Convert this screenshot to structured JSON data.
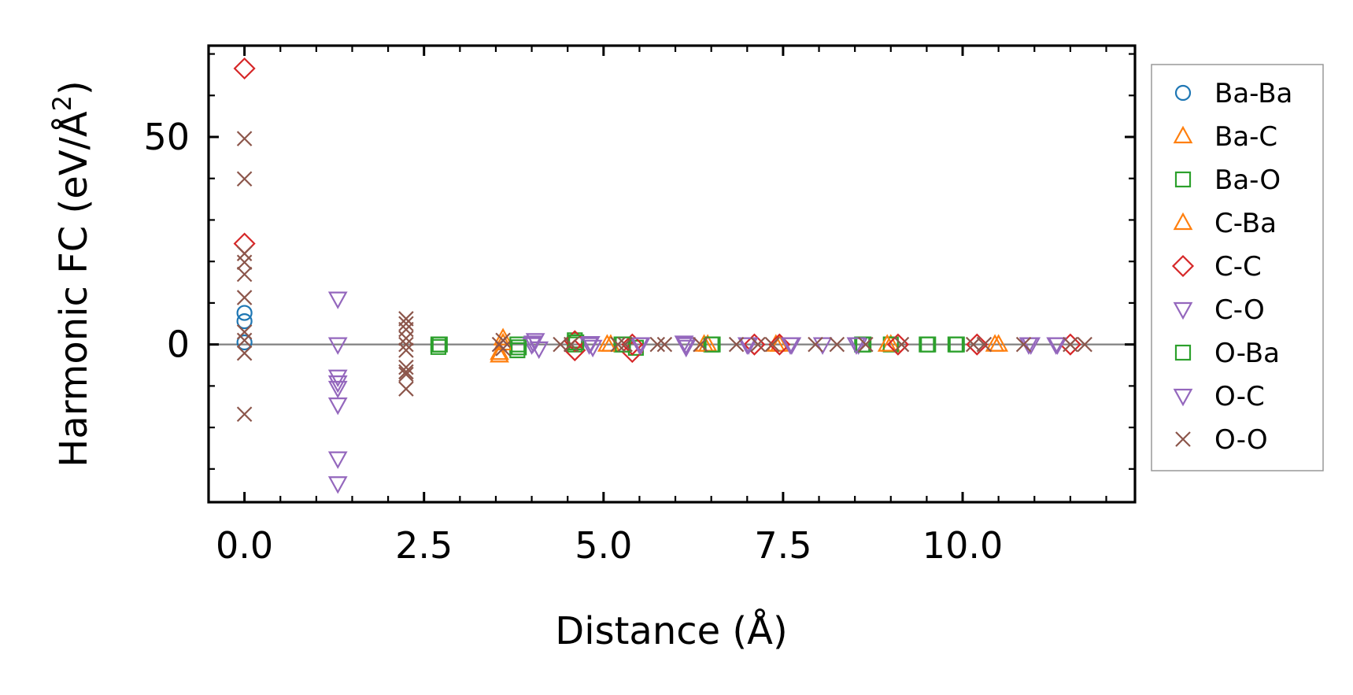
{
  "chart_data": {
    "type": "scatter",
    "title": "",
    "xlabel": "Distance (Å)",
    "ylabel_main": "Harmonic FC (eV/Å",
    "ylabel_sup": "2",
    "ylabel_close": ")",
    "xlim": [
      -0.5,
      12.4
    ],
    "ylim": [
      -38,
      72
    ],
    "xticks": [
      0.0,
      2.5,
      5.0,
      7.5,
      10.0
    ],
    "xtick_labels": [
      "0.0",
      "2.5",
      "5.0",
      "7.5",
      "10.0"
    ],
    "yticks": [
      0,
      50
    ],
    "ytick_labels": [
      "0",
      "50"
    ],
    "zero_line": 0,
    "legend_position": "outside-right",
    "series": [
      {
        "name": "Ba-Ba",
        "marker": "circle",
        "color": "#1f77b4",
        "points": [
          [
            0.0,
            7.6
          ],
          [
            0.0,
            5.6
          ],
          [
            0.0,
            0.5
          ]
        ]
      },
      {
        "name": "Ba-C",
        "marker": "triangle-up",
        "color": "#ff7f0e",
        "points": [
          [
            3.55,
            -2.0
          ],
          [
            3.6,
            1.5
          ],
          [
            5.1,
            0.0
          ],
          [
            6.45,
            0.0
          ],
          [
            7.4,
            0.0
          ],
          [
            9.0,
            0.0
          ],
          [
            10.5,
            0.0
          ]
        ]
      },
      {
        "name": "Ba-O",
        "marker": "square",
        "color": "#2ca02c",
        "points": [
          [
            2.7,
            0.0
          ],
          [
            2.7,
            -0.6
          ],
          [
            3.8,
            0.0
          ],
          [
            3.8,
            -1.4
          ],
          [
            4.6,
            0.0
          ],
          [
            4.6,
            1.0
          ],
          [
            5.25,
            0.0
          ],
          [
            5.45,
            -0.8
          ],
          [
            6.5,
            0.0
          ],
          [
            8.6,
            0.0
          ],
          [
            9.0,
            0.0
          ],
          [
            9.5,
            0.0
          ],
          [
            9.9,
            0.0
          ]
        ]
      },
      {
        "name": "C-Ba",
        "marker": "triangle-up",
        "color": "#ff7f0e",
        "points": [
          [
            3.55,
            -2.6
          ],
          [
            3.6,
            0.3
          ],
          [
            5.05,
            0.0
          ],
          [
            6.4,
            0.0
          ],
          [
            7.45,
            0.0
          ],
          [
            8.95,
            0.0
          ],
          [
            10.45,
            0.0
          ]
        ]
      },
      {
        "name": "C-C",
        "marker": "diamond",
        "color": "#d62728",
        "points": [
          [
            0.0,
            66.5
          ],
          [
            0.0,
            24.3
          ],
          [
            4.6,
            0.8
          ],
          [
            4.6,
            -1.4
          ],
          [
            5.4,
            0.0
          ],
          [
            5.4,
            -1.8
          ],
          [
            7.1,
            0.0
          ],
          [
            7.45,
            0.0
          ],
          [
            9.1,
            0.0
          ],
          [
            10.2,
            0.0
          ],
          [
            11.5,
            0.0
          ]
        ]
      },
      {
        "name": "C-O",
        "marker": "triangle-down",
        "color": "#9467bd",
        "points": [
          [
            1.3,
            11.0
          ],
          [
            1.3,
            0.0
          ],
          [
            1.3,
            -7.8
          ],
          [
            1.3,
            -9.2
          ],
          [
            1.3,
            -10.5
          ],
          [
            1.3,
            -14.5
          ],
          [
            1.3,
            -27.5
          ],
          [
            1.3,
            -33.5
          ],
          [
            4.0,
            0.0
          ],
          [
            4.05,
            1.0
          ],
          [
            4.1,
            -1.0
          ],
          [
            4.8,
            0.0
          ],
          [
            4.85,
            -0.6
          ],
          [
            5.5,
            0.0
          ],
          [
            6.15,
            0.0
          ],
          [
            6.15,
            -0.6
          ],
          [
            7.0,
            0.0
          ],
          [
            7.6,
            0.0
          ],
          [
            8.05,
            0.0
          ],
          [
            8.55,
            0.0
          ],
          [
            10.95,
            0.0
          ],
          [
            11.3,
            0.0
          ]
        ]
      },
      {
        "name": "O-Ba",
        "marker": "square",
        "color": "#2ca02c",
        "points": [
          [
            2.72,
            0.0
          ],
          [
            3.82,
            -0.7
          ],
          [
            4.62,
            0.5
          ],
          [
            5.27,
            0.0
          ],
          [
            6.52,
            0.0
          ],
          [
            8.62,
            0.0
          ],
          [
            9.52,
            0.0
          ],
          [
            9.92,
            0.0
          ]
        ]
      },
      {
        "name": "O-C",
        "marker": "triangle-down",
        "color": "#9467bd",
        "points": [
          [
            4.02,
            0.4
          ],
          [
            4.82,
            0.3
          ],
          [
            5.52,
            0.0
          ],
          [
            6.12,
            0.4
          ],
          [
            7.02,
            0.0
          ],
          [
            7.62,
            0.0
          ],
          [
            8.52,
            0.0
          ],
          [
            10.92,
            0.0
          ],
          [
            11.32,
            0.0
          ]
        ]
      },
      {
        "name": "O-O",
        "marker": "x",
        "color": "#8c564b",
        "points": [
          [
            0.0,
            49.6
          ],
          [
            0.0,
            39.9
          ],
          [
            0.0,
            21.9
          ],
          [
            0.0,
            19.8
          ],
          [
            0.0,
            16.9
          ],
          [
            0.0,
            11.3
          ],
          [
            0.0,
            3.0
          ],
          [
            0.0,
            1.0
          ],
          [
            0.0,
            -2.1
          ],
          [
            0.0,
            -16.8
          ],
          [
            2.25,
            6.2
          ],
          [
            2.25,
            5.0
          ],
          [
            2.25,
            3.6
          ],
          [
            2.25,
            1.5
          ],
          [
            2.25,
            0.0
          ],
          [
            2.25,
            -1.4
          ],
          [
            2.25,
            -5.5
          ],
          [
            2.25,
            -6.6
          ],
          [
            2.25,
            -7.2
          ],
          [
            2.25,
            -10.7
          ],
          [
            3.55,
            0.0
          ],
          [
            3.6,
            1.0
          ],
          [
            3.6,
            -1.0
          ],
          [
            4.4,
            0.0
          ],
          [
            4.55,
            0.0
          ],
          [
            5.2,
            0.0
          ],
          [
            5.3,
            0.0
          ],
          [
            5.75,
            0.0
          ],
          [
            5.85,
            0.0
          ],
          [
            6.35,
            0.0
          ],
          [
            6.85,
            0.0
          ],
          [
            7.15,
            0.0
          ],
          [
            7.35,
            0.0
          ],
          [
            7.95,
            0.0
          ],
          [
            8.25,
            0.0
          ],
          [
            8.65,
            0.0
          ],
          [
            9.15,
            0.0
          ],
          [
            10.15,
            0.0
          ],
          [
            10.3,
            0.0
          ],
          [
            10.85,
            0.0
          ],
          [
            11.5,
            0.0
          ],
          [
            11.7,
            0.0
          ]
        ]
      }
    ]
  }
}
